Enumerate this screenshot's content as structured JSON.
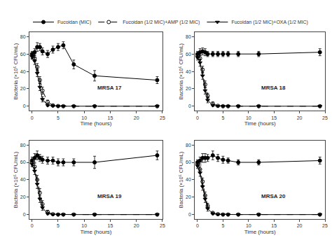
{
  "chart_data": [
    {
      "type": "line",
      "title": "MRSA 17",
      "xlabel": "Time (hours)",
      "ylabel": "Bacteria (×10⁵ CFU/mL)",
      "x": [
        0,
        0.5,
        1,
        1.5,
        2,
        3,
        4,
        5,
        6,
        8,
        12,
        24
      ],
      "xlim": [
        -0.5,
        25
      ],
      "ylim": [
        -5,
        85
      ],
      "xticks": [
        0,
        5,
        10,
        15,
        20,
        25
      ],
      "yticks": [
        0,
        20,
        40,
        60,
        80
      ],
      "grid": false,
      "legend": "top",
      "series": [
        {
          "name": "Fucoidan (MIC)",
          "color": "black",
          "marker": "circle",
          "line_style": "solid",
          "values": [
            60,
            62,
            68,
            68,
            63,
            60,
            65,
            68,
            70,
            48,
            35,
            30
          ],
          "errors": [
            3,
            4,
            5,
            4,
            4,
            4,
            4,
            4,
            4,
            5,
            6,
            4
          ]
        },
        {
          "name": "Fucoidan (1/2 MIC)+AMP (1/2 MIC)",
          "color": "black",
          "marker": "circle-open",
          "line_style": "dash",
          "values": [
            58,
            55,
            45,
            30,
            18,
            5,
            1,
            0.3,
            0.1,
            0.1,
            0.1,
            0.1
          ],
          "errors": [
            3,
            4,
            4,
            4,
            4,
            2,
            1,
            0.3,
            0.1,
            0.1,
            0.1,
            0.1
          ]
        },
        {
          "name": "Fucoidan (1/2 MIC)+OXA (1/2 MIC)",
          "color": "black",
          "marker": "triangle-down",
          "line_style": "solid",
          "values": [
            57,
            52,
            38,
            22,
            8,
            1,
            0.3,
            0.1,
            0.1,
            0.1,
            0.1,
            0.1
          ],
          "errors": [
            3,
            4,
            4,
            4,
            3,
            1,
            0.3,
            0.1,
            0.1,
            0.1,
            0.1,
            0.1
          ]
        }
      ]
    },
    {
      "type": "line",
      "title": "MRSA 18",
      "xlabel": "Time (hours)",
      "ylabel": "Bacteria (×10⁵ CFU/mL)",
      "x": [
        0,
        0.5,
        1,
        1.5,
        2,
        3,
        4,
        5,
        6,
        8,
        12,
        24
      ],
      "xlim": [
        -0.5,
        25
      ],
      "ylim": [
        -5,
        85
      ],
      "xticks": [
        0,
        5,
        10,
        15,
        20,
        25
      ],
      "yticks": [
        0,
        20,
        40,
        60,
        80
      ],
      "grid": false,
      "legend": "top",
      "series": [
        {
          "name": "Fucoidan (MIC)",
          "color": "black",
          "marker": "circle",
          "line_style": "solid",
          "values": [
            60,
            62,
            63,
            62,
            60,
            60,
            60,
            60,
            60,
            60,
            60,
            62
          ],
          "errors": [
            3,
            4,
            4,
            4,
            3,
            3,
            3,
            3,
            3,
            3,
            3,
            4
          ]
        },
        {
          "name": "Fucoidan (1/2 MIC)+AMP (1/2 MIC)",
          "color": "black",
          "marker": "circle-open",
          "line_style": "dash",
          "values": [
            58,
            55,
            42,
            25,
            12,
            3,
            0.5,
            0.1,
            0.1,
            0.1,
            0.1,
            0.1
          ],
          "errors": [
            3,
            4,
            4,
            4,
            3,
            2,
            0.5,
            0.1,
            0.1,
            0.1,
            0.1,
            0.1
          ]
        },
        {
          "name": "Fucoidan (1/2 MIC)+OXA (1/2 MIC)",
          "color": "black",
          "marker": "triangle-down",
          "line_style": "solid",
          "values": [
            56,
            50,
            35,
            18,
            7,
            1,
            0.3,
            0.1,
            0.1,
            0.1,
            0.1,
            0.1
          ],
          "errors": [
            3,
            4,
            4,
            4,
            3,
            1,
            0.3,
            0.1,
            0.1,
            0.1,
            0.1,
            0.1
          ]
        }
      ]
    },
    {
      "type": "line",
      "title": "MRSA 19",
      "xlabel": "Time (hours)",
      "ylabel": "Bacteria (×10⁵ CFU/mL)",
      "x": [
        0,
        0.5,
        1,
        1.5,
        2,
        3,
        4,
        5,
        6,
        8,
        12,
        24
      ],
      "xlim": [
        -0.5,
        25
      ],
      "ylim": [
        -5,
        85
      ],
      "xticks": [
        0,
        5,
        10,
        15,
        20,
        25
      ],
      "yticks": [
        0,
        20,
        40,
        60,
        80
      ],
      "grid": false,
      "legend": "top",
      "series": [
        {
          "name": "Fucoidan (MIC)",
          "color": "black",
          "marker": "circle",
          "line_style": "solid",
          "values": [
            62,
            65,
            68,
            65,
            63,
            62,
            62,
            60,
            60,
            60,
            60,
            68
          ],
          "errors": [
            4,
            5,
            5,
            4,
            4,
            4,
            4,
            4,
            4,
            4,
            7,
            5
          ]
        },
        {
          "name": "Fucoidan (1/2 MIC)+AMP (1/2 MIC)",
          "color": "black",
          "marker": "circle-open",
          "line_style": "dash",
          "values": [
            60,
            55,
            40,
            25,
            12,
            3,
            0.5,
            0.1,
            0.1,
            0.1,
            0.1,
            0.1
          ],
          "errors": [
            4,
            4,
            5,
            5,
            4,
            2,
            0.5,
            0.1,
            0.1,
            0.1,
            0.1,
            0.1
          ]
        },
        {
          "name": "Fucoidan (1/2 MIC)+OXA (1/2 MIC)",
          "color": "black",
          "marker": "triangle-down",
          "line_style": "solid",
          "values": [
            58,
            50,
            35,
            18,
            8,
            1,
            0.3,
            0.1,
            0.1,
            0.1,
            0.1,
            0.1
          ],
          "errors": [
            3,
            4,
            5,
            4,
            3,
            1,
            0.3,
            0.1,
            0.1,
            0.1,
            0.1,
            0.1
          ]
        }
      ]
    },
    {
      "type": "line",
      "title": "MRSA 20",
      "xlabel": "Time (hours)",
      "ylabel": "Bacteria (×10⁵ CFU/mL)",
      "x": [
        0,
        0.5,
        1,
        1.5,
        2,
        3,
        4,
        5,
        6,
        8,
        12,
        24
      ],
      "xlim": [
        -0.5,
        25
      ],
      "ylim": [
        -5,
        85
      ],
      "xticks": [
        0,
        5,
        10,
        15,
        20,
        25
      ],
      "yticks": [
        0,
        20,
        40,
        60,
        80
      ],
      "grid": false,
      "legend": "top",
      "series": [
        {
          "name": "Fucoidan (MIC)",
          "color": "black",
          "marker": "circle",
          "line_style": "solid",
          "values": [
            60,
            62,
            65,
            65,
            65,
            68,
            65,
            63,
            62,
            60,
            60,
            62
          ],
          "errors": [
            3,
            4,
            5,
            5,
            4,
            5,
            4,
            4,
            3,
            3,
            3,
            4
          ]
        },
        {
          "name": "Fucoidan (1/2 MIC)+AMP (1/2 MIC)",
          "color": "black",
          "marker": "circle-open",
          "line_style": "dash",
          "values": [
            58,
            52,
            38,
            22,
            10,
            2,
            0.5,
            0.1,
            0.1,
            0.1,
            0.1,
            0.1
          ],
          "errors": [
            3,
            4,
            4,
            4,
            3,
            1,
            0.5,
            0.1,
            0.1,
            0.1,
            0.1,
            0.1
          ]
        },
        {
          "name": "Fucoidan (1/2 MIC)+OXA (1/2 MIC)",
          "color": "black",
          "marker": "triangle-down",
          "line_style": "solid",
          "values": [
            56,
            48,
            32,
            18,
            7,
            1,
            0.3,
            0.1,
            0.1,
            0.1,
            0.1,
            0.1
          ],
          "errors": [
            3,
            4,
            4,
            4,
            3,
            1,
            0.3,
            0.1,
            0.1,
            0.1,
            0.1,
            0.1
          ]
        }
      ]
    }
  ]
}
